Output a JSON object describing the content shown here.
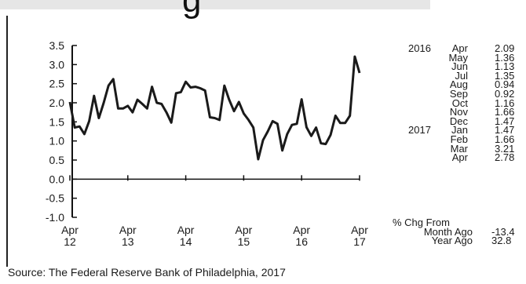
{
  "header": {
    "title_fragment": "g"
  },
  "chart_data": {
    "type": "line",
    "ylim": [
      -1.0,
      3.5
    ],
    "yticks": [
      "3.5",
      "3.0",
      "2.5",
      "2.0",
      "1.5",
      "1.0",
      "0.5",
      "0.0",
      "-0.5",
      "-1.0"
    ],
    "xticks": [
      {
        "month": "Apr",
        "year": "12"
      },
      {
        "month": "Apr",
        "year": "13"
      },
      {
        "month": "Apr",
        "year": "14"
      },
      {
        "month": "Apr",
        "year": "15"
      },
      {
        "month": "Apr",
        "year": "16"
      },
      {
        "month": "Apr",
        "year": "17"
      }
    ],
    "x_start": "Apr 2012",
    "series": [
      {
        "values": [
          2.02,
          1.35,
          1.38,
          1.18,
          1.52,
          2.18,
          1.6,
          2.0,
          2.45,
          2.62,
          1.85,
          1.85,
          1.92,
          1.75,
          2.08,
          1.97,
          1.85,
          2.42,
          2.0,
          1.97,
          1.75,
          1.48,
          2.25,
          2.28,
          2.55,
          2.4,
          2.42,
          2.38,
          2.32,
          1.62,
          1.6,
          1.55,
          2.45,
          2.08,
          1.78,
          2.02,
          1.72,
          1.55,
          1.35,
          0.52,
          1.02,
          1.25,
          1.52,
          1.45,
          0.75,
          1.18,
          1.42,
          1.45,
          2.09,
          1.36,
          1.13,
          1.35,
          0.94,
          0.92,
          1.16,
          1.66,
          1.47,
          1.47,
          1.66,
          3.21,
          2.78
        ]
      }
    ],
    "grid": false
  },
  "table": {
    "rows": [
      {
        "year": "2016",
        "month": "Apr",
        "value": "2.09"
      },
      {
        "year": "",
        "month": "May",
        "value": "1.36"
      },
      {
        "year": "",
        "month": "Jun",
        "value": "1.13"
      },
      {
        "year": "",
        "month": "Jul",
        "value": "1.35"
      },
      {
        "year": "",
        "month": "Aug",
        "value": "0.94"
      },
      {
        "year": "",
        "month": "Sep",
        "value": "0.92"
      },
      {
        "year": "",
        "month": "Oct",
        "value": "1.16"
      },
      {
        "year": "",
        "month": "Nov",
        "value": "1.66"
      },
      {
        "year": "",
        "month": "Dec",
        "value": "1.47"
      },
      {
        "year": "2017",
        "month": "Jan",
        "value": "1.47"
      },
      {
        "year": "",
        "month": "Feb",
        "value": "1.66"
      },
      {
        "year": "",
        "month": "Mar",
        "value": "3.21"
      },
      {
        "year": "",
        "month": "Apr",
        "value": "2.78"
      }
    ],
    "change_heading": "% Chg From",
    "changes": [
      {
        "label": "Month Ago",
        "value": "-13.4"
      },
      {
        "label": "Year Ago",
        "value": "32.8"
      }
    ]
  },
  "source": "Source: The Federal Reserve Bank of Philadelphia, 2017"
}
